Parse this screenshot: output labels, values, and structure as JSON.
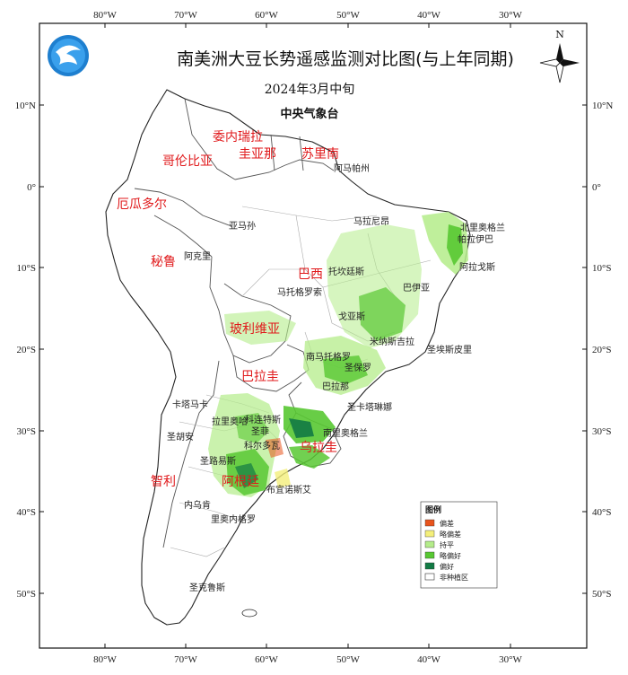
{
  "title": "南美洲大豆长势遥感监测对比图(与上年同期)",
  "subtitle": "2024年3月中旬",
  "agency": "中央气象台",
  "north_label": "N",
  "logo": "cma-logo",
  "axes": {
    "top_labels": [
      "80°W",
      "70°W",
      "60°W",
      "50°W",
      "40°W",
      "30°W"
    ],
    "bottom_labels": [
      "80°W",
      "70°W",
      "60°W",
      "50°W",
      "40°W",
      "30°W"
    ],
    "left_labels": [
      "10°N",
      "0°",
      "10°S",
      "20°S",
      "30°S",
      "40°S",
      "50°S"
    ],
    "right_labels": [
      "10°N",
      "0°",
      "10°S",
      "20°S",
      "30°S",
      "40°S",
      "50°S"
    ]
  },
  "countries": [
    {
      "label": "委内瑞拉"
    },
    {
      "label": "哥伦比亚"
    },
    {
      "label": "圭亚那"
    },
    {
      "label": "苏里南"
    },
    {
      "label": "厄瓜多尔"
    },
    {
      "label": "秘鲁"
    },
    {
      "label": "巴西"
    },
    {
      "label": "玻利维亚"
    },
    {
      "label": "巴拉圭"
    },
    {
      "label": "乌拉圭"
    },
    {
      "label": "智利"
    },
    {
      "label": "阿根廷"
    }
  ],
  "places": [
    {
      "label": "阿马帕州"
    },
    {
      "label": "马拉尼昂"
    },
    {
      "label": "北里奥格兰"
    },
    {
      "label": "帕拉伊巴"
    },
    {
      "label": "亚马孙"
    },
    {
      "label": "阿克里"
    },
    {
      "label": "托坎廷斯"
    },
    {
      "label": "阿拉戈斯"
    },
    {
      "label": "巴伊亚"
    },
    {
      "label": "马托格罗索"
    },
    {
      "label": "戈亚斯"
    },
    {
      "label": "米纳斯吉拉"
    },
    {
      "label": "圣埃斯皮里"
    },
    {
      "label": "南马托格罗"
    },
    {
      "label": "圣保罗"
    },
    {
      "label": "巴拉那"
    },
    {
      "label": "圣卡塔琳娜"
    },
    {
      "label": "南里奥格兰"
    },
    {
      "label": "卡塔马卡"
    },
    {
      "label": "拉里奥哈"
    },
    {
      "label": "科连特斯"
    },
    {
      "label": "圣菲"
    },
    {
      "label": "圣胡安"
    },
    {
      "label": "科尔多瓦"
    },
    {
      "label": "圣路易斯"
    },
    {
      "label": "布宜诺斯艾"
    },
    {
      "label": "内乌肯"
    },
    {
      "label": "里奥内格罗"
    },
    {
      "label": "圣克鲁斯"
    }
  ],
  "legend": {
    "title": "图例",
    "items": [
      {
        "label": "偏差",
        "color": "#e8541c"
      },
      {
        "label": "略偏差",
        "color": "#f4ef7a"
      },
      {
        "label": "持平",
        "color": "#b4ec8a"
      },
      {
        "label": "略偏好",
        "color": "#58c832"
      },
      {
        "label": "偏好",
        "color": "#127a44"
      },
      {
        "label": "非种植区",
        "color": "#ffffff"
      }
    ]
  }
}
